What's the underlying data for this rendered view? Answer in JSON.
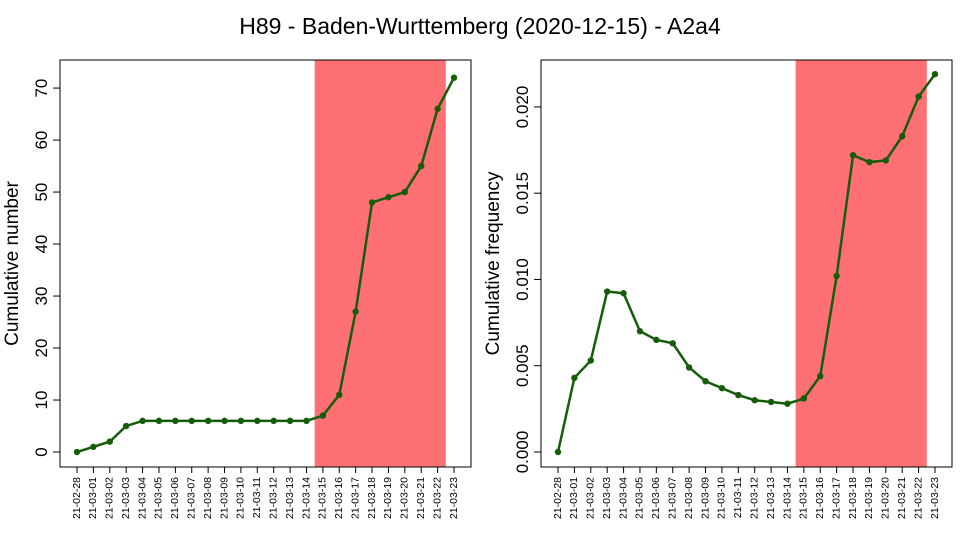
{
  "title": "H89 - Baden-Wurttemberg (2020-12-15) - A2a4",
  "chart_data": [
    {
      "type": "line",
      "y_label": "Cumulative number",
      "categories": [
        "21-02-28",
        "21-03-01",
        "21-03-02",
        "21-03-03",
        "21-03-04",
        "21-03-05",
        "21-03-06",
        "21-03-07",
        "21-03-08",
        "21-03-09",
        "21-03-10",
        "21-03-11",
        "21-03-12",
        "21-03-13",
        "21-03-14",
        "21-03-15",
        "21-03-16",
        "21-03-17",
        "21-03-18",
        "21-03-19",
        "21-03-20",
        "21-03-21",
        "21-03-22",
        "21-03-23"
      ],
      "series": [
        {
          "color": "#155d09",
          "values": [
            0,
            1,
            2,
            5,
            6,
            6,
            6,
            6,
            6,
            6,
            6,
            6,
            6,
            6,
            6,
            7,
            11,
            27,
            48,
            49,
            50,
            55,
            66,
            72
          ]
        }
      ],
      "highlight_range": [
        "21-03-15",
        "21-03-22"
      ],
      "highlight_color": "#ff7074",
      "ylim": [
        -2.88,
        75.4
      ],
      "yticks": [
        0,
        10,
        20,
        30,
        40,
        50,
        60,
        70
      ],
      "grid": false
    },
    {
      "type": "line",
      "y_label": "Cumulative frequency",
      "categories": [
        "21-02-28",
        "21-03-01",
        "21-03-02",
        "21-03-03",
        "21-03-04",
        "21-03-05",
        "21-03-06",
        "21-03-07",
        "21-03-08",
        "21-03-09",
        "21-03-10",
        "21-03-11",
        "21-03-12",
        "21-03-13",
        "21-03-14",
        "21-03-15",
        "21-03-16",
        "21-03-17",
        "21-03-18",
        "21-03-19",
        "21-03-20",
        "21-03-21",
        "21-03-22",
        "21-03-23"
      ],
      "series": [
        {
          "color": "#155d09",
          "values": [
            0,
            0.0043,
            0.0053,
            0.0093,
            0.0092,
            0.007,
            0.0065,
            0.0063,
            0.0049,
            0.0041,
            0.0037,
            0.0033,
            0.003,
            0.0029,
            0.0028,
            0.0031,
            0.0044,
            0.0102,
            0.0172,
            0.0168,
            0.0169,
            0.0183,
            0.0206,
            0.0219
          ]
        }
      ],
      "highlight_range": [
        "21-03-15",
        "21-03-22"
      ],
      "highlight_color": "#ff7074",
      "ylim": [
        -0.00087,
        0.02272
      ],
      "yticks": [
        {
          "value": 0,
          "label": "0.000"
        },
        {
          "value": 0.005,
          "label": "0.005"
        },
        {
          "value": 0.01,
          "label": "0.010"
        },
        {
          "value": 0.015,
          "label": "0.015"
        },
        {
          "value": 0.02,
          "label": "0.020"
        }
      ],
      "grid": false
    }
  ]
}
